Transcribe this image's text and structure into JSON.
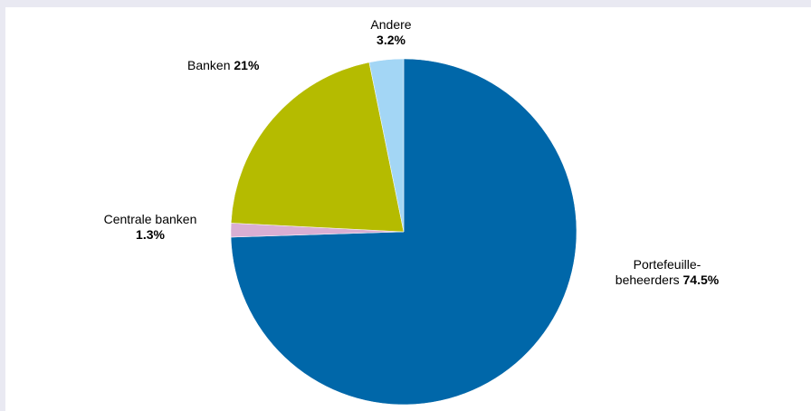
{
  "colors": {
    "background": "#e9e9f2",
    "panel": "#ffffff"
  },
  "chart_data": {
    "type": "pie",
    "start_angle_deg": 0,
    "direction": "clockwise",
    "slices": [
      {
        "label_line1": "Portefeuille-",
        "label_line2": "beheerders",
        "value_label": "74.5%",
        "value": 74.5,
        "color": "#0067a9"
      },
      {
        "label_line1": "Centrale banken",
        "label_line2": "",
        "value_label": "1.3%",
        "value": 1.3,
        "color": "#d9aed3"
      },
      {
        "label_line1": "Banken",
        "label_line2": "",
        "value_label": "21%",
        "value": 21.0,
        "color": "#b5bb00"
      },
      {
        "label_line1": "Andere",
        "label_line2": "",
        "value_label": "3.2%",
        "value": 3.2,
        "color": "#a3d6f5"
      }
    ]
  }
}
